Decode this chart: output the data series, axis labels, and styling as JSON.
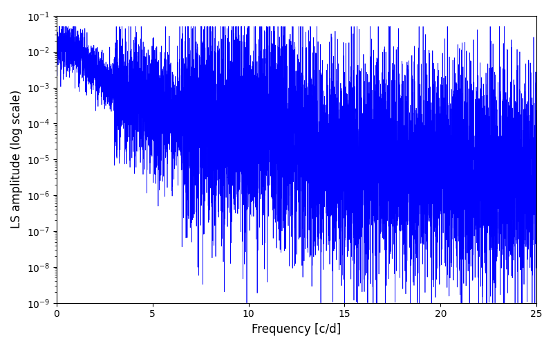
{
  "title": "",
  "xlabel": "Frequency [c/d]",
  "ylabel": "LS amplitude (log scale)",
  "xlim": [
    0,
    25
  ],
  "ylim": [
    1e-09,
    0.1
  ],
  "line_color": "#0000ff",
  "line_width": 0.5,
  "yscale": "log",
  "figsize": [
    8.0,
    5.0
  ],
  "dpi": 100,
  "background_color": "#ffffff",
  "n_points": 8000,
  "seed": 12345
}
